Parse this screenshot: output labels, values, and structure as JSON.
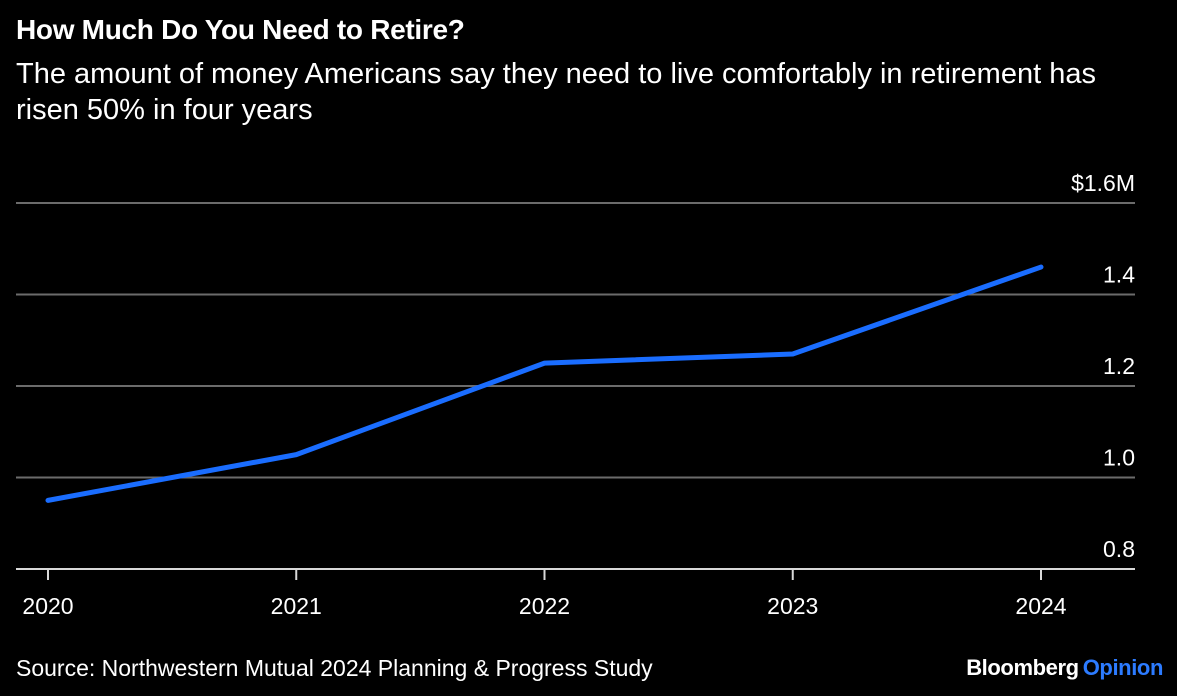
{
  "header": {
    "title": "How Much Do You Need to Retire?",
    "subtitle": "The amount of money Americans say they need to live comfortably in retirement has risen 50% in four years"
  },
  "footer": {
    "source": "Source: Northwestern Mutual 2024 Planning & Progress Study",
    "brand_main": "Bloomberg",
    "brand_accent": "Opinion"
  },
  "colors": {
    "background": "#000000",
    "line": "#1a6dff",
    "grid": "#6b6b6b",
    "text": "#ffffff",
    "brand_accent": "#2c7bff"
  },
  "chart_data": {
    "type": "line",
    "title": "How Much Do You Need to Retire?",
    "subtitle": "The amount of money Americans say they need to live comfortably in retirement has risen 50% in four years",
    "x": [
      "2020",
      "2021",
      "2022",
      "2023",
      "2024"
    ],
    "series": [
      {
        "values": [
          0.95,
          1.05,
          1.25,
          1.27,
          1.46
        ]
      }
    ],
    "ylim": [
      0.8,
      1.6
    ],
    "yticks": [
      0.8,
      1.0,
      1.2,
      1.4,
      1.6
    ],
    "ytick_labels": [
      "0.8",
      "1.0",
      "1.2",
      "1.4",
      "$1.6M"
    ],
    "xlabel": "",
    "ylabel": "",
    "grid": true,
    "y_axis_side": "right"
  }
}
